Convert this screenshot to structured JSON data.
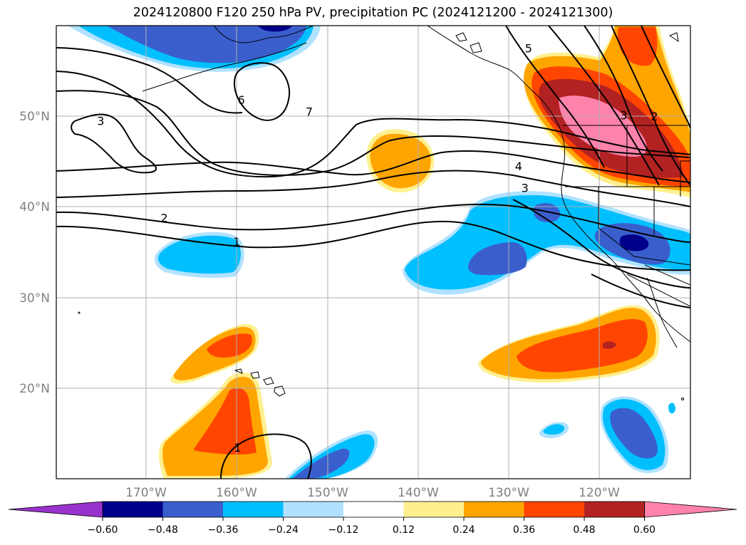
{
  "title": "2024120800 F120 250 hPa PV, precipitation PC (2024121200 - 2024121300)",
  "latitude_labels": [
    "50°N",
    "40°N",
    "30°N",
    "20°N"
  ],
  "longitude_labels": [
    "170°W",
    "160°W",
    "150°W",
    "140°W",
    "130°W",
    "120°W"
  ],
  "contour_labels": [
    {
      "text": "3",
      "value": 3,
      "lon": -175,
      "lat": 49.5
    },
    {
      "text": "6",
      "value": 6,
      "lon": -159.5,
      "lat": 51.8
    },
    {
      "text": "7",
      "value": 7,
      "lon": -152,
      "lat": 50.5
    },
    {
      "text": "5",
      "value": 5,
      "lon": -127.8,
      "lat": 57.5
    },
    {
      "text": "3",
      "value": 3,
      "lon": -117.3,
      "lat": 50.1
    },
    {
      "text": "2",
      "value": 2,
      "lon": -113.9,
      "lat": 50.0
    },
    {
      "text": "4",
      "value": 4,
      "lon": -128.9,
      "lat": 44.5
    },
    {
      "text": "3",
      "value": 3,
      "lon": -128.2,
      "lat": 42.1
    },
    {
      "text": "2",
      "value": 2,
      "lon": -168.0,
      "lat": 38.8
    },
    {
      "text": "1",
      "value": 1,
      "lon": -160.0,
      "lat": 36.2
    },
    {
      "text": "1",
      "value": 1,
      "lon": -159.9,
      "lat": 13.5
    }
  ],
  "colorbar": {
    "ticks": [
      "−0.60",
      "−0.48",
      "−0.36",
      "−0.24",
      "−0.12",
      "0.12",
      "0.24",
      "0.36",
      "0.48",
      "0.60"
    ],
    "colors": [
      "#9a32cd",
      "#00008b",
      "#3a5fcd",
      "#00bfff",
      "#b0e2ff",
      "#ffffff",
      "#fff08f",
      "#ffa500",
      "#ff4500",
      "#b22222",
      "#ff82ab"
    ]
  },
  "fill_colors": {
    "light_blue": "#b0e2ff",
    "sky_blue": "#00bfff",
    "royal_blue": "#3a5fcd",
    "navy": "#00008b",
    "light_yellow": "#fff08f",
    "orange": "#ffa500",
    "orange_red": "#ff4500",
    "firebrick": "#b22222",
    "pink": "#ff82ab"
  }
}
